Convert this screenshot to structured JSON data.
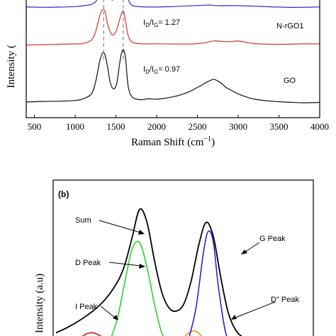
{
  "chart_data": [
    {
      "panel_label": "",
      "type": "line",
      "title": "",
      "xlabel_main": "Raman Shift (cm",
      "xlabel_exp": "−1",
      "xlabel_close": ")",
      "ylabel": "Intensity (",
      "xlim": [
        400,
        4000
      ],
      "x_ticks": [
        500,
        1000,
        1500,
        2000,
        2500,
        3000,
        3500,
        4000
      ],
      "x_tick_labels": [
        "500",
        "1000",
        "1500",
        "2000",
        "2500",
        "3000",
        "3500",
        "4000"
      ],
      "grid": false,
      "dashed_lines_x": [
        1350,
        1590
      ],
      "colors": {
        "top": "#2b2bd6",
        "nrgo1": "#e03030",
        "go": "#111111",
        "dash": "#6b6b8a"
      },
      "series": [
        {
          "name": "",
          "color": "#2b2bd6",
          "x": [
            400,
            600,
            800,
            1000,
            1100,
            1200,
            1260,
            1310,
            1345,
            1380,
            1420,
            1450,
            1480,
            1510,
            1545,
            1575,
            1600,
            1630,
            1660,
            1700,
            1800,
            2000,
            2200,
            2400,
            2600,
            2650,
            2700,
            2800,
            2900,
            3000,
            3200,
            3400,
            3600,
            3800,
            4000
          ],
          "y": [
            0.04,
            0.04,
            0.05,
            0.06,
            0.08,
            0.14,
            0.32,
            0.7,
            0.95,
            0.8,
            0.45,
            0.35,
            0.4,
            0.6,
            0.88,
            1.0,
            0.98,
            0.62,
            0.3,
            0.12,
            0.07,
            0.05,
            0.05,
            0.07,
            0.11,
            0.14,
            0.13,
            0.11,
            0.1,
            0.08,
            0.06,
            0.05,
            0.04,
            0.04,
            0.04
          ]
        },
        {
          "name": "N-rGO1",
          "color": "#e03030",
          "x": [
            400,
            600,
            800,
            1000,
            1100,
            1200,
            1250,
            1300,
            1330,
            1350,
            1370,
            1400,
            1450,
            1500,
            1540,
            1570,
            1595,
            1620,
            1650,
            1700,
            1800,
            2000,
            2200,
            2400,
            2500,
            2600,
            2700,
            2800,
            2900,
            3000,
            3200,
            3400,
            3600,
            3800,
            4000
          ],
          "y": [
            0.06,
            0.06,
            0.06,
            0.07,
            0.09,
            0.2,
            0.42,
            0.85,
            1.0,
            1.02,
            0.95,
            0.62,
            0.35,
            0.42,
            0.7,
            0.92,
            0.97,
            0.7,
            0.32,
            0.14,
            0.08,
            0.07,
            0.07,
            0.08,
            0.1,
            0.12,
            0.16,
            0.14,
            0.13,
            0.16,
            0.1,
            0.08,
            0.07,
            0.07,
            0.07
          ]
        },
        {
          "name": "GO",
          "color": "#111111",
          "x": [
            400,
            600,
            800,
            1000,
            1100,
            1200,
            1250,
            1300,
            1330,
            1350,
            1370,
            1400,
            1430,
            1470,
            1510,
            1545,
            1570,
            1595,
            1620,
            1650,
            1700,
            1800,
            1900,
            2000,
            2100,
            2200,
            2300,
            2400,
            2500,
            2600,
            2650,
            2700,
            2750,
            2800,
            2850,
            2900,
            3000,
            3100,
            3200,
            3400,
            3600,
            3800,
            4000
          ],
          "y": [
            0.07,
            0.08,
            0.09,
            0.11,
            0.14,
            0.22,
            0.42,
            0.78,
            0.92,
            0.95,
            0.9,
            0.68,
            0.42,
            0.3,
            0.4,
            0.75,
            0.95,
            1.0,
            0.82,
            0.35,
            0.16,
            0.12,
            0.14,
            0.13,
            0.14,
            0.16,
            0.2,
            0.26,
            0.34,
            0.42,
            0.45,
            0.47,
            0.44,
            0.4,
            0.34,
            0.3,
            0.22,
            0.16,
            0.12,
            0.09,
            0.08,
            0.07,
            0.07
          ]
        }
      ],
      "annotations": [
        {
          "id": "ratio_nrgo1",
          "base": "I",
          "sub1": "D",
          "mid": "/I",
          "sub2": "G",
          "tail": "= 1.27"
        },
        {
          "id": "ratio_go",
          "base": "I",
          "sub1": "D",
          "mid": "/I",
          "sub2": "G",
          "tail": "= 0.97"
        }
      ],
      "series_labels": [
        "N-rGO1",
        "GO"
      ]
    },
    {
      "panel_label": "(b)",
      "type": "line",
      "title": "",
      "xlabel": "",
      "ylabel": "Intensity (a.u)",
      "grid": false,
      "xlim": [
        900,
        2000
      ],
      "colors": {
        "sum": "#000000",
        "d": "#22cc22",
        "g": "#1a1acc",
        "d2": "#ff8c00",
        "i": "#dd0000"
      },
      "series": [
        {
          "name": "Sum",
          "color": "#000000",
          "x": [
            900,
            950,
            1000,
            1050,
            1100,
            1150,
            1180,
            1210,
            1240,
            1270,
            1300,
            1330,
            1360,
            1390,
            1420,
            1450,
            1480,
            1510,
            1540,
            1570,
            1600,
            1630,
            1660,
            1690,
            1720
          ],
          "y": [
            0.1,
            0.14,
            0.19,
            0.25,
            0.33,
            0.45,
            0.57,
            0.76,
            0.95,
            0.86,
            0.6,
            0.38,
            0.27,
            0.25,
            0.3,
            0.46,
            0.7,
            0.86,
            0.76,
            0.48,
            0.24,
            0.12,
            0.07,
            0.05,
            0.04
          ]
        },
        {
          "name": "D Peak",
          "color": "#22cc22",
          "x": [
            1120,
            1150,
            1180,
            1210,
            1240,
            1270,
            1300,
            1330,
            1360
          ],
          "y": [
            0.05,
            0.2,
            0.45,
            0.68,
            0.72,
            0.55,
            0.3,
            0.1,
            0.02
          ]
        },
        {
          "name": "G Peak",
          "color": "#1a1acc",
          "x": [
            1440,
            1470,
            1500,
            1520,
            1540,
            1560,
            1590,
            1620
          ],
          "y": [
            0.06,
            0.28,
            0.66,
            0.8,
            0.72,
            0.42,
            0.1,
            0.02
          ]
        },
        {
          "name": "D\" Peak",
          "color": "#ff8c00",
          "x": [
            1380,
            1410,
            1440,
            1470,
            1500,
            1530
          ],
          "y": [
            0.0,
            0.05,
            0.1,
            0.11,
            0.06,
            0.0
          ]
        },
        {
          "name": "I Peak",
          "color": "#dd0000",
          "x": [
            960,
            990,
            1020,
            1050,
            1080,
            1110,
            1140
          ],
          "y": [
            0.0,
            0.05,
            0.09,
            0.1,
            0.08,
            0.04,
            0.0
          ]
        }
      ],
      "callouts": [
        "Sum",
        "D Peak",
        "I Peak",
        "G Peak",
        "D\" Peak"
      ]
    }
  ]
}
